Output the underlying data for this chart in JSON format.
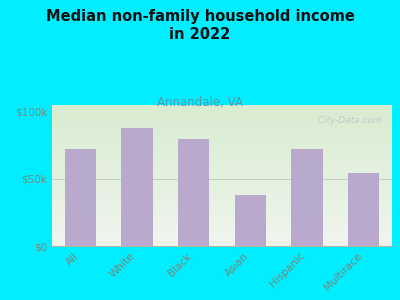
{
  "title": "Median non-family household income\nin 2022",
  "subtitle": "Annandale, VA",
  "categories": [
    "All",
    "White",
    "Black",
    "Asian",
    "Hispanic",
    "Multirace"
  ],
  "values": [
    72000,
    88000,
    80000,
    38000,
    72000,
    54000
  ],
  "bar_color": "#b9a9cc",
  "bg_color": "#00eeff",
  "title_color": "#111111",
  "subtitle_color": "#5599aa",
  "tick_label_color": "#778877",
  "yticks": [
    0,
    50000,
    100000
  ],
  "ytick_labels": [
    "$0",
    "$50k",
    "$100k"
  ],
  "ylim": [
    0,
    105000
  ],
  "watermark": "  City-Data.com"
}
